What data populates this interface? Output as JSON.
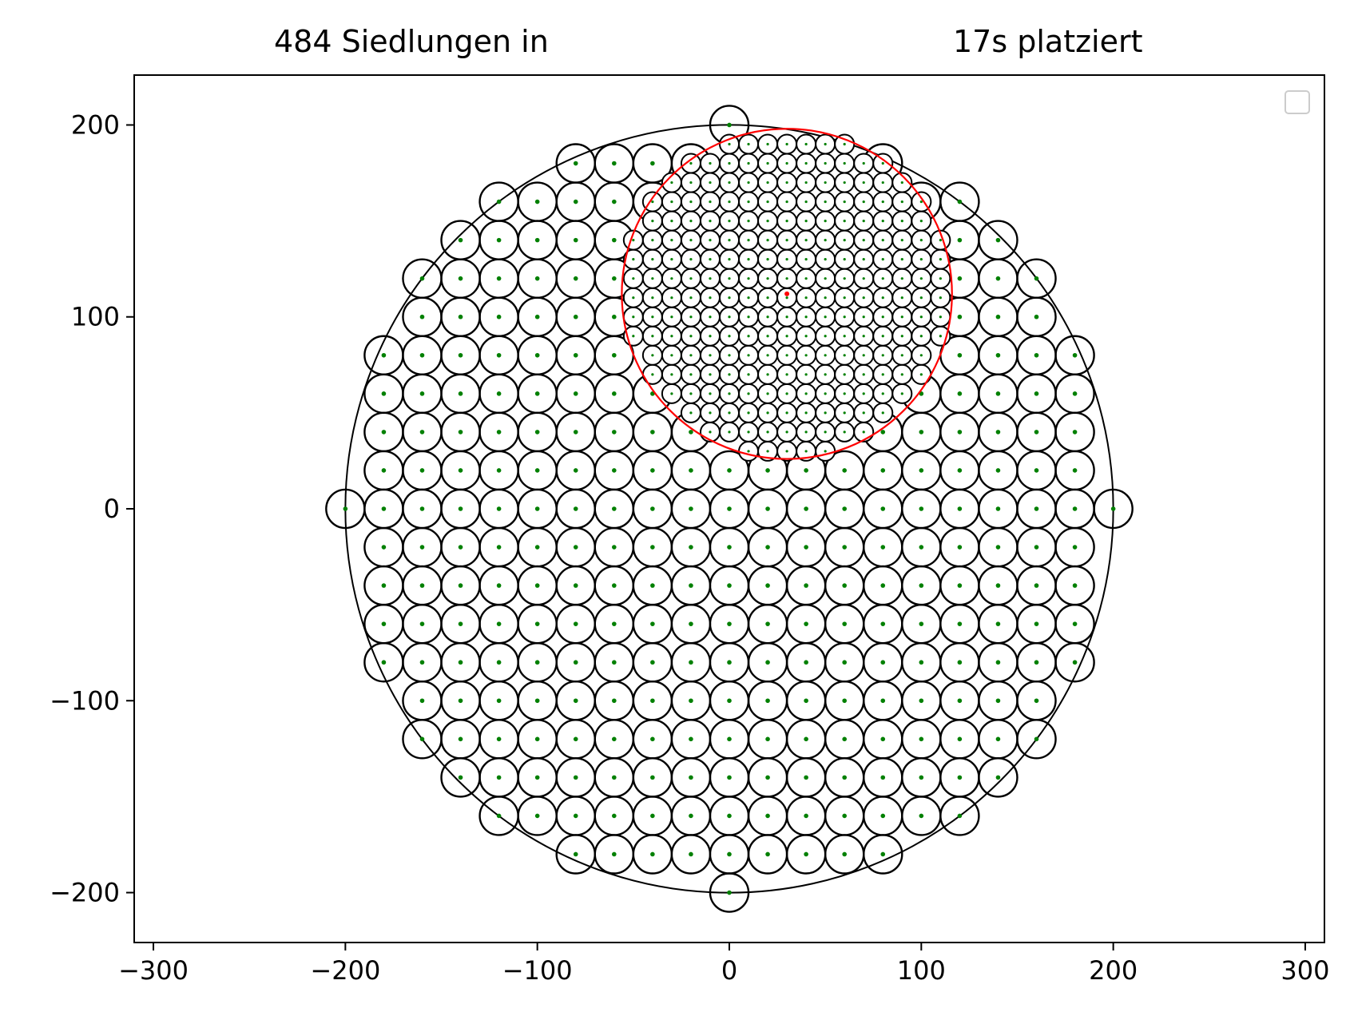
{
  "chart_data": {
    "type": "scatter",
    "title_left": "484 Siedlungen in",
    "title_right": "17s platziert",
    "xlabel": "",
    "ylabel": "",
    "xlim": [
      -310,
      310
    ],
    "ylim": [
      -226,
      226
    ],
    "x_ticks": [
      -300,
      -200,
      -100,
      0,
      100,
      200,
      300
    ],
    "x_tick_labels": [
      "−300",
      "−200",
      "−100",
      "0",
      "100",
      "200",
      "300"
    ],
    "y_ticks": [
      -200,
      -100,
      0,
      100,
      200
    ],
    "y_tick_labels": [
      "−200",
      "−100",
      "0",
      "100",
      "200"
    ],
    "grid": false,
    "legend": "top-right (empty)",
    "settlement_count": 484,
    "boundary": {
      "center": [
        0,
        0
      ],
      "radius": 200
    },
    "large_settlements": {
      "spacing": 20,
      "radius": 10,
      "center_color": "#008000"
    },
    "inner_region": {
      "center": [
        30,
        112
      ],
      "radius": 86,
      "color": "#ff0000"
    },
    "small_settlements": {
      "spacing": 10,
      "radius": 5,
      "center_color": "#008000"
    },
    "colors": {
      "outline": "#000000",
      "center_dot": "#008000",
      "region": "#ff0000"
    }
  }
}
